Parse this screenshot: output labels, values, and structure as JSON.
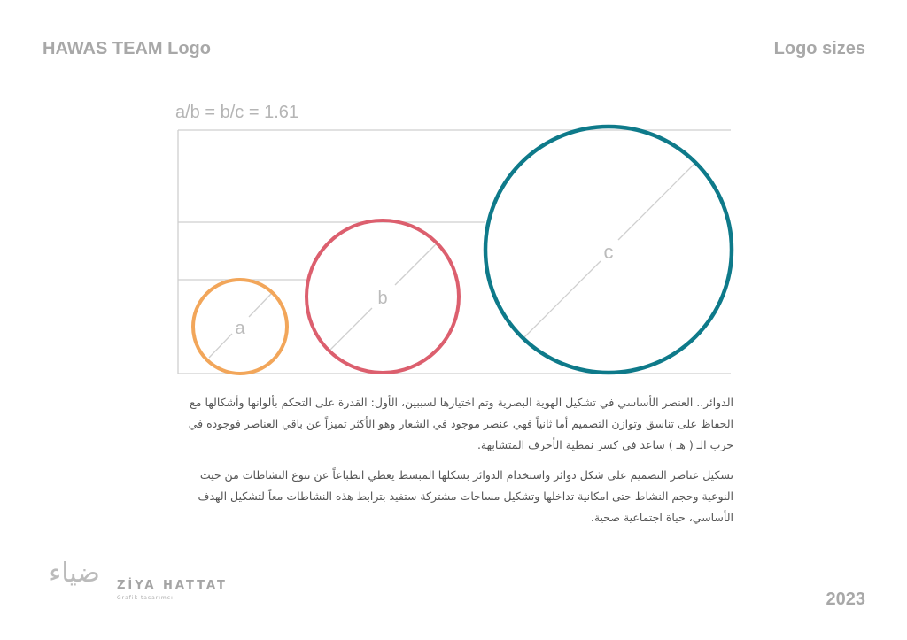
{
  "header": {
    "title": "HAWAS TEAM Logo",
    "section": "Logo sizes"
  },
  "diagram": {
    "formula": "a/b = b/c = 1.61",
    "circles": [
      {
        "label": "a",
        "color": "#F2A65A"
      },
      {
        "label": "b",
        "color": "#DC5F6E"
      },
      {
        "label": "c",
        "color": "#0E7A8A"
      }
    ]
  },
  "body": {
    "paragraph1": "الدوائر.. العنصر الأساسي في تشكيل الهوية البصرية وتم اختيارها لسببين، الأول: القدرة على التحكم بألوانها وأشكالها مع الحفاظ على تناسق وتوازن التصميم أما ثانياً فهي عنصر موجود في الشعار وهو الأكثر تميزاً عن باقي العناصر فوجوده في حرب الـ ( هـ ) ساعد في كسر نمطية الأحرف المتشابهة.",
    "paragraph2": "تشكيل عناصر التصميم على شكل دوائر واستخدام الدوائر بشكلها المبسط يعطي انطباعاً عن تنوع النشاطات من حيث النوعية وحجم النشاط حتى امكانية تداخلها وتشكيل مساحات مشتركة ستفيد بترابط هذه النشاطات معاً لتشكيل الهدف الأساسي، حياة اجتماعية صحية."
  },
  "footer": {
    "logo_mark": "ضياء",
    "logo_name": "ZİYA HATTAT",
    "logo_subtitle": "Grafik tasarımcı",
    "year": "2023"
  }
}
